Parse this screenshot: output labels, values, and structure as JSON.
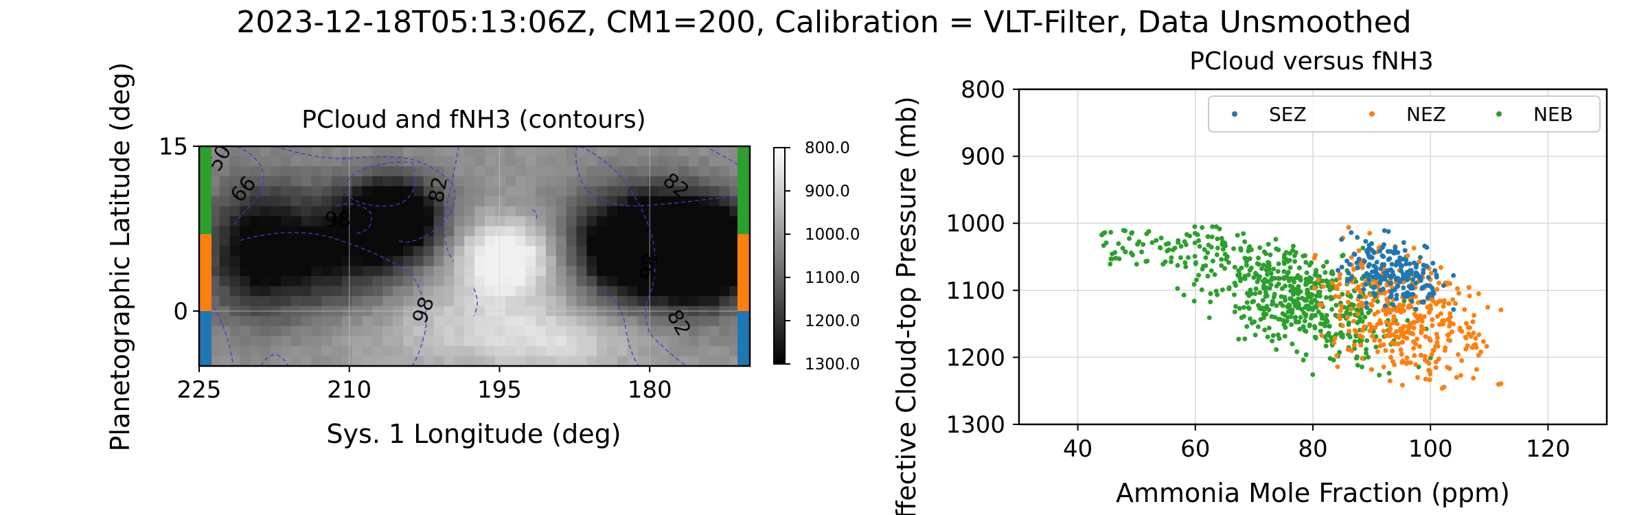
{
  "suptitle": "2023-12-18T05:13:06Z, CM1=200, Calibration = VLT-Filter, Data Unsmoothed",
  "chart_data": [
    {
      "type": "heatmap",
      "title": "PCloud and fNH3 (contours)",
      "xlabel": "Sys. 1 Longitude (deg)",
      "ylabel": "Planetographic Latitude (deg)",
      "xticks": [
        "225",
        "210",
        "195",
        "180"
      ],
      "xtick_values": [
        225,
        210,
        195,
        180
      ],
      "yticks": [
        "15",
        "0"
      ],
      "ytick_values": [
        15,
        0
      ],
      "xlim": [
        225,
        170
      ],
      "ylim": [
        -5,
        15
      ],
      "grid": true,
      "colorbar": {
        "ticks": [
          "800.0",
          "900.0",
          "1000.0",
          "1100.0",
          "1200.0",
          "1300.0"
        ],
        "range": [
          800,
          1300
        ],
        "colormap": "gray_r"
      },
      "contour_labels": [
        "50",
        "66",
        "98",
        "82",
        "82",
        "98",
        "98",
        "82"
      ],
      "band_colors": [
        "#2ca02c",
        "#ff7f0e",
        "#1f77b4"
      ],
      "band_latitudes": [
        [
          7,
          15
        ],
        [
          0,
          7
        ],
        [
          -5,
          0
        ]
      ],
      "contour_color": "#3b3bd6"
    },
    {
      "type": "scatter",
      "title": "PCloud versus fNH3",
      "xlabel": "Ammonia Mole Fraction (ppm)",
      "ylabel": "Effective Cloud-top Pressure (mb)",
      "xlim": [
        30,
        130
      ],
      "ylim": [
        1300,
        800
      ],
      "xticks": [
        "40",
        "60",
        "80",
        "100",
        "120"
      ],
      "xtick_values": [
        40,
        60,
        80,
        100,
        120
      ],
      "yticks": [
        "800",
        "900",
        "1000",
        "1100",
        "1200",
        "1300"
      ],
      "ytick_values": [
        800,
        900,
        1000,
        1100,
        1200,
        1300
      ],
      "grid": true,
      "legend_position": "top-right",
      "series": [
        {
          "name": "SEZ",
          "color": "#1f77b4",
          "x_range": [
            78,
            106
          ],
          "y_range": [
            985,
            1140
          ],
          "x_center": 94,
          "y_center": 1075,
          "count": 200
        },
        {
          "name": "NEZ",
          "color": "#ff7f0e",
          "x_range": [
            66,
            112
          ],
          "y_range": [
            1005,
            1300
          ],
          "x_center": 96,
          "y_center": 1140,
          "count": 380
        },
        {
          "name": "NEB",
          "color": "#2ca02c",
          "x_range": [
            44,
            100
          ],
          "y_range": [
            1005,
            1270
          ],
          "x_center": 78,
          "y_center": 1110,
          "count": 620
        }
      ]
    }
  ]
}
